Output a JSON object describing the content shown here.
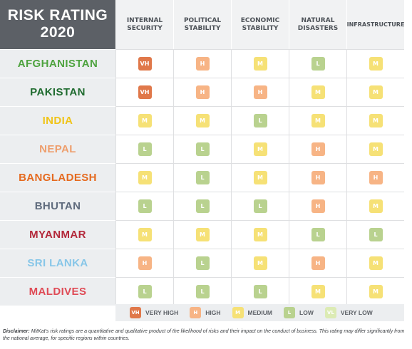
{
  "title_line1": "RISK RATING",
  "title_line2": "2020",
  "chart_data": {
    "type": "table",
    "columns": [
      {
        "line1": "INTERNAL",
        "line2": "SECURITY"
      },
      {
        "line1": "POLITICAL",
        "line2": "STABILITY"
      },
      {
        "line1": "ECONOMIC",
        "line2": "STABILITY"
      },
      {
        "line1": "NATURAL",
        "line2": "DISASTERS"
      },
      {
        "line1": "INFRASTRUCTURE",
        "line2": ""
      }
    ],
    "rows": [
      {
        "country": "AFGHANISTAN",
        "color": "#4ea33f",
        "ratings": [
          "VH",
          "H",
          "M",
          "L",
          "M"
        ]
      },
      {
        "country": "PAKISTAN",
        "color": "#1f6b2f",
        "ratings": [
          "VH",
          "H",
          "H",
          "M",
          "M"
        ]
      },
      {
        "country": "INDIA",
        "color": "#f0c419",
        "ratings": [
          "M",
          "M",
          "L",
          "M",
          "M"
        ]
      },
      {
        "country": "NEPAL",
        "color": "#ee9e6c",
        "ratings": [
          "L",
          "L",
          "M",
          "H",
          "M"
        ]
      },
      {
        "country": "BANGLADESH",
        "color": "#e56a1f",
        "ratings": [
          "M",
          "L",
          "M",
          "H",
          "H"
        ]
      },
      {
        "country": "BHUTAN",
        "color": "#5f6b7d",
        "ratings": [
          "L",
          "L",
          "L",
          "H",
          "M"
        ]
      },
      {
        "country": "MYANMAR",
        "color": "#b3283a",
        "ratings": [
          "M",
          "M",
          "M",
          "L",
          "L"
        ]
      },
      {
        "country": "SRI LANKA",
        "color": "#87c6e8",
        "ratings": [
          "H",
          "L",
          "M",
          "H",
          "M"
        ]
      },
      {
        "country": "MALDIVES",
        "color": "#df4a55",
        "ratings": [
          "L",
          "L",
          "L",
          "M",
          "M"
        ]
      }
    ],
    "rating_colors": {
      "VH": "#e0784a",
      "H": "#f7b485",
      "M": "#f6e176",
      "L": "#b9d28f",
      "VL": "#dcebb4"
    }
  },
  "legend": [
    {
      "code": "VH",
      "label": "VERY HIGH"
    },
    {
      "code": "H",
      "label": "HIGH"
    },
    {
      "code": "M",
      "label": "MEDIUM"
    },
    {
      "code": "L",
      "label": "LOW"
    },
    {
      "code": "VL",
      "label": "VERY LOW"
    }
  ],
  "disclaimer_label": "Disclaimer:",
  "disclaimer_text": "MitKat's risk ratings are a quantitative and qualitative product of the likelihood of risks and their impact on the conduct of business. This rating may differ significantly from the national average, for specific regions within countries."
}
